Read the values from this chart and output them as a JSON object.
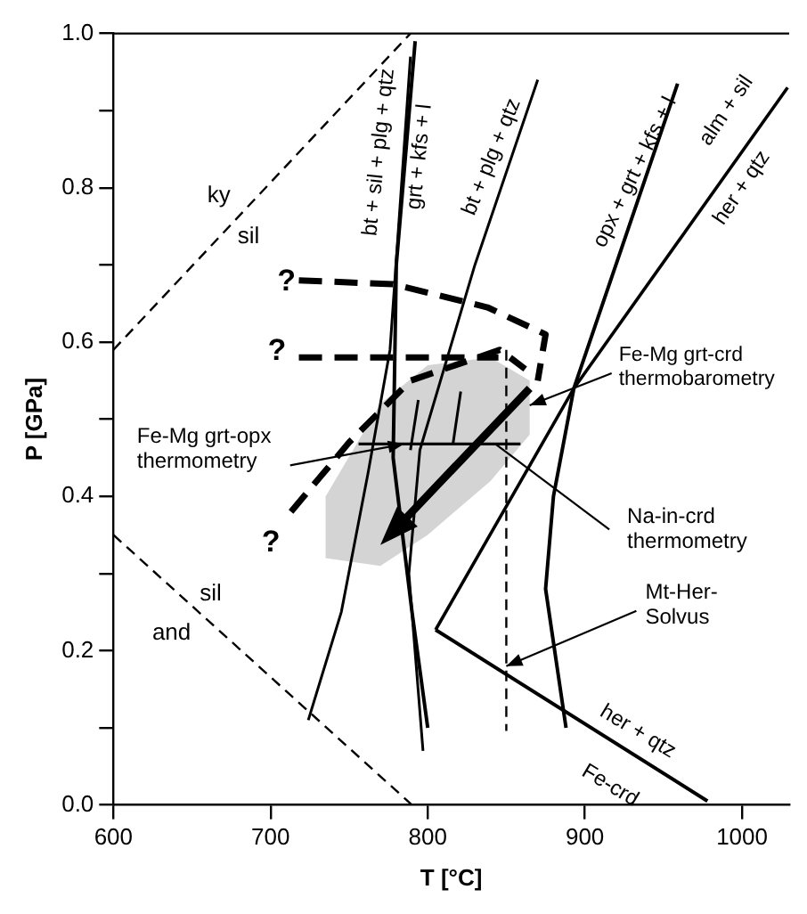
{
  "chart_data": {
    "type": "line",
    "xlabel": "T [°C]",
    "ylabel": "P [GPa]",
    "xlim": [
      600,
      1030
    ],
    "ylim": [
      0,
      1.0
    ],
    "xticks": [
      600,
      700,
      800,
      900,
      1000
    ],
    "yticks": [
      {
        "value": 0,
        "label": "0.0"
      },
      {
        "value": 0.1,
        "label": null
      },
      {
        "value": 0.2,
        "label": "0.2"
      },
      {
        "value": 0.3,
        "label": null
      },
      {
        "value": 0.4,
        "label": "0.4"
      },
      {
        "value": 0.5,
        "label": null
      },
      {
        "value": 0.6,
        "label": "0.6"
      },
      {
        "value": 0.7,
        "label": null
      },
      {
        "value": 0.8,
        "label": "0.8"
      },
      {
        "value": 0.9,
        "label": null
      },
      {
        "value": 1.0,
        "label": "1.0"
      }
    ],
    "grid": false,
    "legend": false,
    "marker": "none",
    "series": [
      {
        "type": "line",
        "color": "#000000",
        "line_style": "dashed",
        "x": [
          600,
          789
        ],
        "values": [
          0.59,
          1.0
        ]
      },
      {
        "type": "line",
        "color": "#000000",
        "line_style": "dashed",
        "x": [
          600,
          790
        ],
        "values": [
          0.35,
          0.0
        ]
      },
      {
        "type": "line",
        "color": "#000000",
        "line_style": "solid",
        "x": [
          724,
          745,
          762,
          776,
          789
        ],
        "values": [
          0.11,
          0.25,
          0.43,
          0.59,
          0.97
        ]
      },
      {
        "type": "line",
        "color": "#000000",
        "line_style": "solid",
        "x": [
          800,
          790,
          778,
          780,
          792
        ],
        "values": [
          0.1,
          0.25,
          0.45,
          0.7,
          0.99
        ]
      },
      {
        "type": "line",
        "color": "#000000",
        "line_style": "solid",
        "x": [
          797,
          788,
          795,
          830,
          870
        ],
        "values": [
          0.07,
          0.3,
          0.46,
          0.7,
          0.94
        ]
      },
      {
        "type": "line",
        "color": "#000000",
        "line_style": "solid",
        "x": [
          888,
          875,
          880,
          893,
          959
        ],
        "values": [
          0.1,
          0.28,
          0.4,
          0.54,
          0.935
        ]
      },
      {
        "type": "line",
        "color": "#000000",
        "line_style": "solid",
        "x": [
          1029,
          893,
          805
        ],
        "values": [
          0.93,
          0.54,
          0.227
        ]
      },
      {
        "type": "line",
        "color": "#000000",
        "line_style": "solid",
        "x": [
          805,
          978
        ],
        "values": [
          0.227,
          0.005
        ]
      },
      {
        "type": "line",
        "color": "#000000",
        "line_style": "dashed",
        "x": [
          718,
          778,
          838,
          875,
          870
        ],
        "values": [
          0.68,
          0.675,
          0.645,
          0.61,
          0.55
        ]
      },
      {
        "type": "line",
        "color": "#000000",
        "line_style": "dashed",
        "x": [
          718,
          780,
          845
        ],
        "values": [
          0.58,
          0.58,
          0.58
        ]
      },
      {
        "type": "line",
        "color": "#000000",
        "line_style": "dashed",
        "x": [
          713,
          750,
          789,
          846,
          862
        ],
        "values": [
          0.38,
          0.47,
          0.55,
          0.59,
          0.565
        ]
      },
      {
        "type": "line",
        "color": "#000000",
        "line_style": "solid",
        "x": [
          756,
          859
        ],
        "values": [
          0.468,
          0.468
        ]
      },
      {
        "type": "line",
        "color": "#000000",
        "line_style": "dashed",
        "x": [
          850,
          850
        ],
        "values": [
          0.59,
          0.096
        ]
      },
      {
        "type": "line",
        "color": "#000000",
        "line_style": "solid",
        "x": [
          794,
          789
        ],
        "values": [
          0.525,
          0.46
        ]
      },
      {
        "type": "line",
        "color": "#000000",
        "line_style": "solid",
        "x": [
          821,
          816
        ],
        "values": [
          0.536,
          0.467
        ]
      }
    ],
    "annotations": [
      "ky",
      "sil",
      "sil",
      "and",
      "bt + sil + plg + qtz",
      "grt + kfs + l",
      "bt + plg + qtz",
      "opx + grt + kfs + l",
      "alm + sil",
      "her + qtz",
      "her + qtz",
      "Fe-crd",
      "?",
      "?",
      "?",
      "Fe-Mg grt-crd\nthermobarometry",
      {
        "text": "Fe-Mg grt-opx\nthermometry",
        "x": 785,
        "y": 0.468
      },
      {
        "text": "Na-in-crd\nthermometry",
        "x": 843,
        "y": 0.468
      },
      {
        "text": "Mt-Her-\nSolvus",
        "x": 850,
        "y": 0.18
      }
    ]
  }
}
